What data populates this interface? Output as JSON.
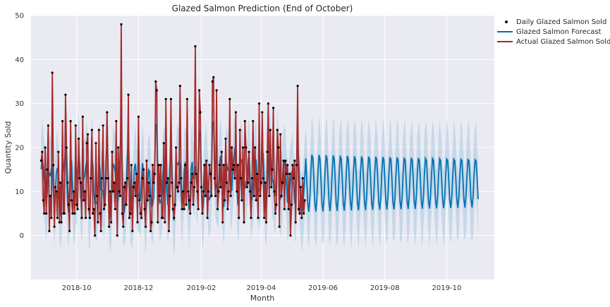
{
  "chart_data": {
    "type": "line",
    "title": "Glazed Salmon Prediction (End of October)",
    "xlabel": "Month",
    "ylabel": "Quantity Sold",
    "xlim": [
      "2018-08-17",
      "2019-11-17"
    ],
    "ylim": [
      -10,
      50
    ],
    "x_ticks": [
      "2018-10",
      "2018-12",
      "2019-02",
      "2019-04",
      "2019-06",
      "2019-08",
      "2019-10"
    ],
    "y_ticks": [
      0,
      10,
      20,
      30,
      40,
      50
    ],
    "grid": true,
    "legend_position": "outside-right-top",
    "colors": {
      "background": "#eaeaf2",
      "grid": "#ffffff",
      "actual": "#a52a2a",
      "forecast": "#0072b2",
      "interval": "#a6c8e2",
      "points": "#000000"
    },
    "series": [
      {
        "name": "Daily Glazed Salmon Sold",
        "style": "points"
      },
      {
        "name": "Glazed Salmon Forecast",
        "style": "line"
      },
      {
        "name": "Actual Glazed Salmon Sold",
        "style": "line"
      }
    ],
    "actual_start": "2018-08-27",
    "actual_values": [
      17,
      19,
      8,
      5,
      20,
      5,
      15,
      25,
      1,
      9,
      4,
      37,
      16,
      2,
      11,
      10,
      4,
      19,
      3,
      12,
      3,
      26,
      5,
      5,
      32,
      20,
      12,
      7,
      1,
      26,
      8,
      5,
      10,
      5,
      25,
      7,
      6,
      22,
      13,
      12,
      4,
      27,
      8,
      10,
      4,
      21,
      23,
      6,
      4,
      13,
      24,
      5,
      6,
      0,
      21,
      9,
      3,
      24,
      5,
      1,
      13,
      25,
      6,
      7,
      13,
      28,
      13,
      2,
      10,
      3,
      19,
      10,
      12,
      6,
      26,
      0,
      20,
      10,
      9,
      48,
      5,
      2,
      11,
      12,
      7,
      13,
      32,
      4,
      5,
      16,
      1,
      11,
      12,
      9,
      14,
      3,
      27,
      8,
      5,
      4,
      13,
      15,
      6,
      2,
      17,
      8,
      12,
      9,
      1,
      3,
      16,
      12,
      14,
      35,
      33,
      3,
      16,
      9,
      16,
      4,
      4,
      21,
      3,
      31,
      12,
      13,
      1,
      9,
      31,
      12,
      6,
      4,
      7,
      20,
      11,
      10,
      12,
      34,
      13,
      6,
      10,
      6,
      16,
      7,
      31,
      10,
      8,
      5,
      12,
      14,
      7,
      11,
      43,
      14,
      10,
      6,
      33,
      28,
      11,
      5,
      10,
      16,
      9,
      17,
      4,
      10,
      16,
      14,
      9,
      35,
      36,
      13,
      9,
      33,
      6,
      10,
      16,
      11,
      19,
      3,
      16,
      8,
      22,
      12,
      6,
      10,
      31,
      9,
      20,
      15,
      16,
      13,
      28,
      10,
      16,
      4,
      24,
      13,
      8,
      20,
      3,
      26,
      20,
      11,
      12,
      19,
      10,
      4,
      13,
      26,
      9,
      20,
      8,
      14,
      4,
      30,
      9,
      12,
      28,
      13,
      4,
      12,
      3,
      19,
      30,
      9,
      24,
      11,
      15,
      29,
      10,
      5,
      7,
      24,
      20,
      2,
      23,
      9,
      12,
      17,
      6,
      17,
      14,
      16,
      6,
      14,
      0,
      7,
      16,
      13,
      17,
      3,
      16,
      34,
      6,
      5,
      11,
      4,
      13,
      5,
      8
    ],
    "forecast_end": "2019-11-01",
    "forecast_range": [
      1,
      26
    ],
    "interval_range": [
      -6,
      29
    ]
  }
}
